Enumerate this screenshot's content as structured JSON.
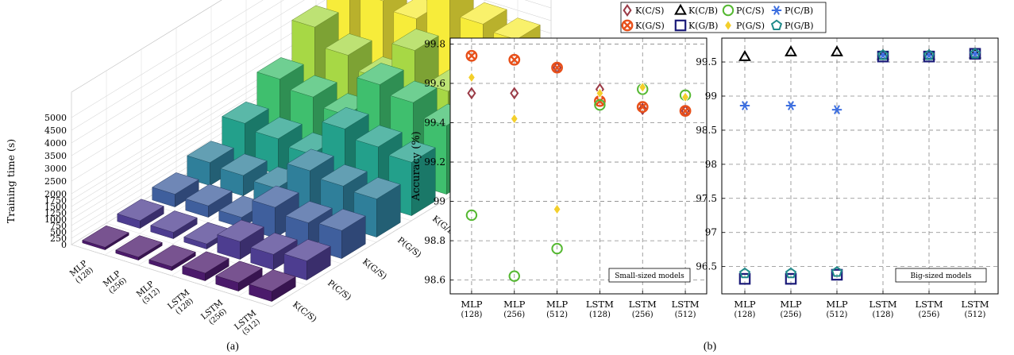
{
  "captions": {
    "a": "(a)",
    "b": "(b)"
  },
  "chart_data": [
    {
      "panel": "(a)",
      "type": "bar",
      "projection": "3d",
      "ylabel": "Training time (s)",
      "yticks": [
        "0",
        "250",
        "500",
        "750",
        "1000",
        "1250",
        "1500",
        "1750",
        "2000",
        "2500",
        "3000",
        "3500",
        "4000",
        "4500",
        "5000"
      ],
      "ylim": [
        0,
        5000
      ],
      "categories": [
        [
          "MLP",
          "(128)"
        ],
        [
          "MLP",
          "(256)"
        ],
        [
          "MLP",
          "(512)"
        ],
        [
          "LSTM",
          "(128)"
        ],
        [
          "LSTM",
          "(256)"
        ],
        [
          "LSTM",
          "(512)"
        ]
      ],
      "series": [
        {
          "name": "K(C/S)",
          "values": [
            100,
            120,
            150,
            300,
            330,
            400
          ]
        },
        {
          "name": "P(C/S)",
          "values": [
            300,
            250,
            200,
            700,
            600,
            750
          ]
        },
        {
          "name": "K(G/S)",
          "values": [
            500,
            450,
            400,
            1200,
            1000,
            1100
          ]
        },
        {
          "name": "P(G/S)",
          "values": [
            900,
            800,
            700,
            1800,
            1600,
            1500
          ]
        },
        {
          "name": "K(G/B)",
          "values": [
            1600,
            1400,
            1200,
            2600,
            2300,
            2100
          ]
        },
        {
          "name": "P(G/B)",
          "values": [
            2500,
            2200,
            1900,
            3500,
            3200,
            2700
          ]
        },
        {
          "name": "P(C/B)",
          "values": [
            3700,
            3000,
            2500,
            4000,
            2800,
            3300
          ]
        },
        {
          "name": "K(C/B)",
          "values": [
            5200,
            4300,
            4000,
            5200,
            4600,
            4400
          ]
        }
      ]
    },
    {
      "panel": "(b)-left",
      "type": "scatter",
      "ylabel": "Accuracy (%)",
      "yticks": [
        "98.6",
        "98.8",
        "99",
        "99.2",
        "99.4",
        "99.6",
        "99.8"
      ],
      "ylim": [
        98.53,
        99.83
      ],
      "grid": true,
      "annotation": "Small-sized models",
      "categories": [
        [
          "MLP",
          "(128)"
        ],
        [
          "MLP",
          "(256)"
        ],
        [
          "MLP",
          "(512)"
        ],
        [
          "LSTM",
          "(128)"
        ],
        [
          "LSTM",
          "(256)"
        ],
        [
          "LSTM",
          "(512)"
        ]
      ],
      "series": [
        {
          "name": "K(C/S)",
          "values": [
            99.55,
            99.55,
            99.68,
            99.57,
            99.47,
            99.46
          ]
        },
        {
          "name": "K(G/S)",
          "values": [
            99.74,
            99.72,
            99.68,
            99.51,
            99.48,
            99.46
          ]
        },
        {
          "name": "P(C/S)",
          "values": [
            98.93,
            98.62,
            98.76,
            99.49,
            99.57,
            99.54
          ]
        },
        {
          "name": "P(G/S)",
          "values": [
            99.63,
            99.42,
            98.96,
            99.55,
            99.58,
            99.53
          ]
        }
      ]
    },
    {
      "panel": "(b)-right",
      "type": "scatter",
      "yticks": [
        "96.5",
        "97",
        "97.5",
        "98",
        "98.5",
        "99",
        "99.5"
      ],
      "ylim": [
        96.1,
        99.85
      ],
      "grid": true,
      "annotation": "Big-sized models",
      "categories": [
        [
          "MLP",
          "(128)"
        ],
        [
          "MLP",
          "(256)"
        ],
        [
          "MLP",
          "(512)"
        ],
        [
          "LSTM",
          "(128)"
        ],
        [
          "LSTM",
          "(256)"
        ],
        [
          "LSTM",
          "(512)"
        ]
      ],
      "series": [
        {
          "name": "K(C/B)",
          "values": [
            99.58,
            99.65,
            99.65,
            99.6,
            99.6,
            99.62
          ]
        },
        {
          "name": "P(C/B)",
          "values": [
            98.86,
            98.86,
            98.8,
            99.6,
            99.6,
            99.62
          ]
        },
        {
          "name": "K(G/B)",
          "values": [
            96.32,
            96.32,
            96.38,
            99.58,
            99.58,
            99.62
          ]
        },
        {
          "name": "P(G/B)",
          "values": [
            96.4,
            96.4,
            96.42,
            99.6,
            99.6,
            99.62
          ]
        }
      ]
    }
  ],
  "legend": {
    "rows": [
      [
        "K(C/S)",
        "K(C/B)",
        "P(C/S)",
        "P(C/B)"
      ],
      [
        "K(G/S)",
        "K(G/B)",
        "P(G/S)",
        "P(G/B)"
      ]
    ]
  },
  "colors": {
    "K(C/S)": "#9b3a46",
    "K(C/B)": "#000000",
    "P(C/S)": "#55b832",
    "P(C/B)": "#3d6fe0",
    "K(G/S)": "#e8501a",
    "K(G/B)": "#1a1a78",
    "P(G/S)": "#f3cf2b",
    "P(G/B)": "#1f8a8a",
    "bar_palette": [
      "#4b1a6b",
      "#4d3d90",
      "#3f5f9d",
      "#2f7f9a",
      "#23a08b",
      "#3fbf6e",
      "#a7d845",
      "#f7ec3a"
    ]
  }
}
